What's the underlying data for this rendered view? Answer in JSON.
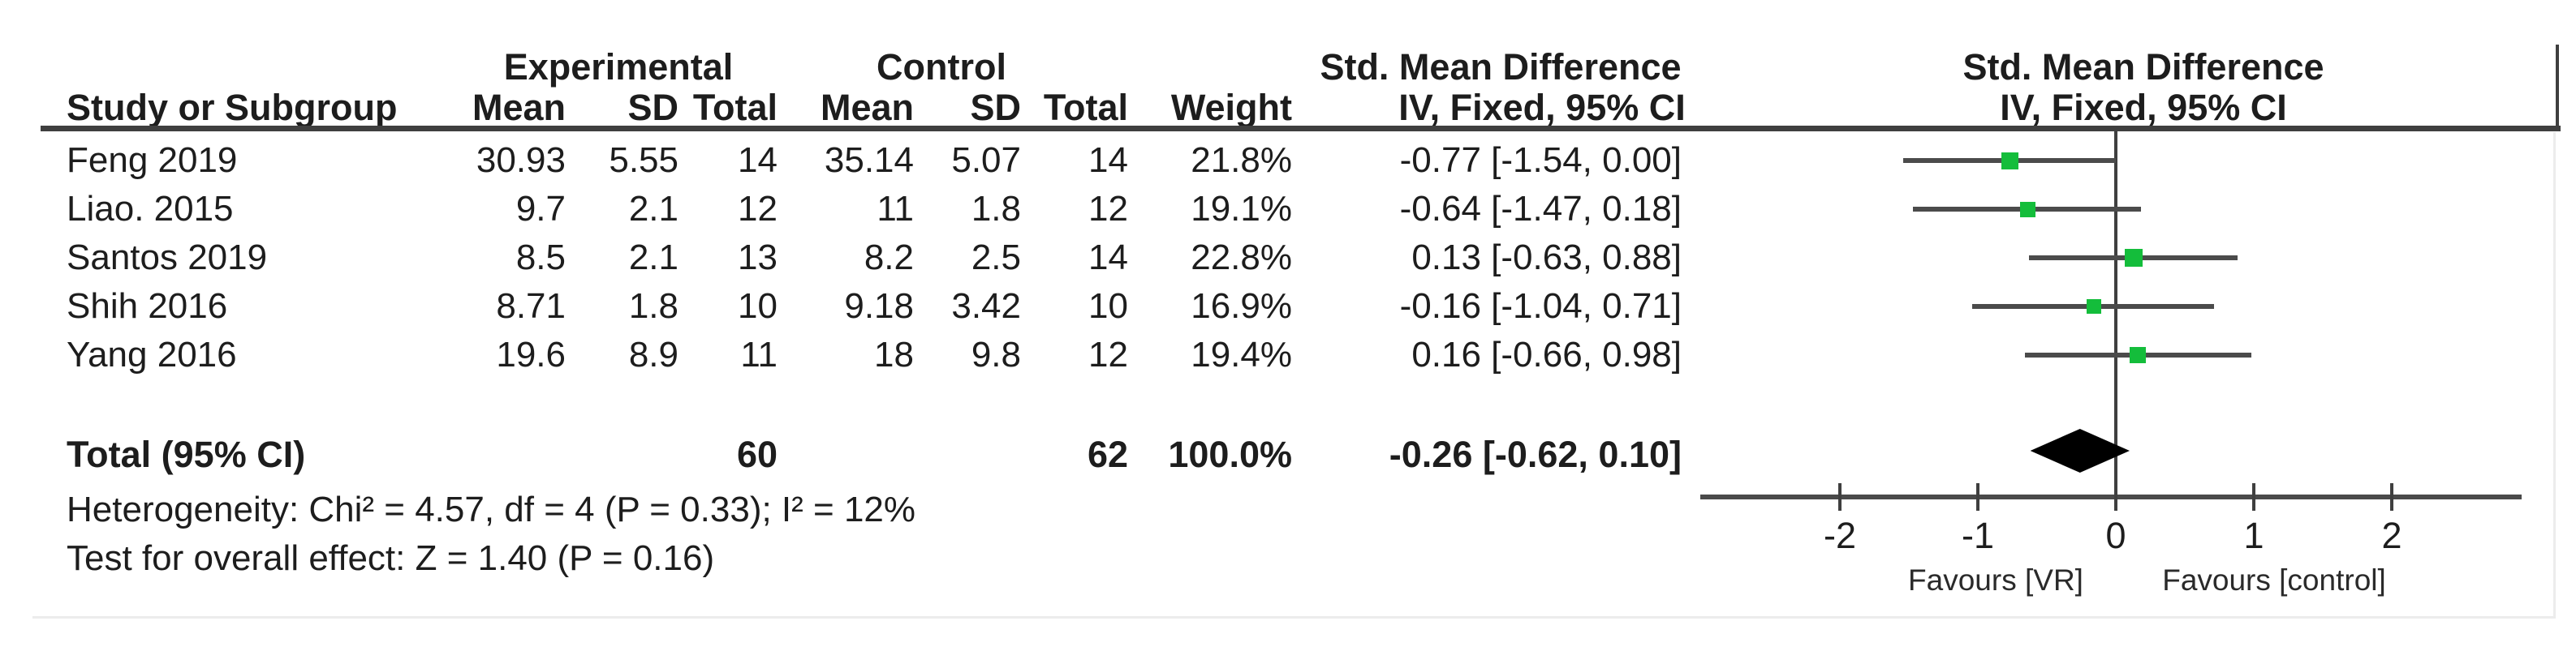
{
  "colors": {
    "square_green": "#14bd3b",
    "ci_line": "#4b4b4b",
    "rule": "#3f3f3f",
    "text": "#1d1d1d",
    "diamond": "#000000"
  },
  "header": {
    "group_experimental": "Experimental",
    "group_control": "Control",
    "smd_left": "Std. Mean Difference",
    "smd_right": "Std. Mean Difference",
    "study": "Study or Subgroup",
    "exp_mean": "Mean",
    "exp_sd": "SD",
    "exp_total": "Total",
    "ctrl_mean": "Mean",
    "ctrl_sd": "SD",
    "ctrl_total": "Total",
    "weight": "Weight",
    "ci_left": "IV, Fixed, 95% CI",
    "ci_right": "IV, Fixed, 95% CI"
  },
  "rows": [
    {
      "study": "Feng 2019",
      "exp_mean": "30.93",
      "exp_sd": "5.55",
      "exp_total": "14",
      "ctrl_mean": "35.14",
      "ctrl_sd": "5.07",
      "ctrl_total": "14",
      "weight": "21.8%",
      "ci_text": "-0.77 [-1.54, 0.00]"
    },
    {
      "study": "Liao. 2015",
      "exp_mean": "9.7",
      "exp_sd": "2.1",
      "exp_total": "12",
      "ctrl_mean": "11",
      "ctrl_sd": "1.8",
      "ctrl_total": "12",
      "weight": "19.1%",
      "ci_text": "-0.64 [-1.47, 0.18]"
    },
    {
      "study": "Santos 2019",
      "exp_mean": "8.5",
      "exp_sd": "2.1",
      "exp_total": "13",
      "ctrl_mean": "8.2",
      "ctrl_sd": "2.5",
      "ctrl_total": "14",
      "weight": "22.8%",
      "ci_text": "0.13 [-0.63, 0.88]"
    },
    {
      "study": "Shih 2016",
      "exp_mean": "8.71",
      "exp_sd": "1.8",
      "exp_total": "10",
      "ctrl_mean": "9.18",
      "ctrl_sd": "3.42",
      "ctrl_total": "10",
      "weight": "16.9%",
      "ci_text": "-0.16 [-1.04, 0.71]"
    },
    {
      "study": "Yang 2016",
      "exp_mean": "19.6",
      "exp_sd": "8.9",
      "exp_total": "11",
      "ctrl_mean": "18",
      "ctrl_sd": "9.8",
      "ctrl_total": "12",
      "weight": "19.4%",
      "ci_text": "0.16 [-0.66, 0.98]"
    }
  ],
  "total_row": {
    "label": "Total (95% CI)",
    "exp_total": "60",
    "ctrl_total": "62",
    "weight": "100.0%",
    "ci_text": "-0.26 [-0.62, 0.10]"
  },
  "footnotes": {
    "heterogeneity": "Heterogeneity: Chi² = 4.57, df = 4 (P = 0.33); I² = 12%",
    "overall_effect": "Test for overall effect: Z = 1.40 (P = 0.16)"
  },
  "chart_data": {
    "type": "scatter",
    "subtype": "forest-plot",
    "title": "",
    "effect_measure": "Std. Mean Difference (IV, Fixed, 95% CI)",
    "x_axis": {
      "ticks": [
        -2,
        -1,
        0,
        1,
        2
      ],
      "range_shown": [
        -3.0,
        2.95
      ],
      "zero_line": 0,
      "label_left": "Favours [VR]",
      "label_right": "Favours [control]"
    },
    "studies": [
      {
        "name": "Feng 2019",
        "est": -0.77,
        "lo": -1.54,
        "hi": 0.0,
        "weight_pct": 21.8
      },
      {
        "name": "Liao. 2015",
        "est": -0.64,
        "lo": -1.47,
        "hi": 0.18,
        "weight_pct": 19.1
      },
      {
        "name": "Santos 2019",
        "est": 0.13,
        "lo": -0.63,
        "hi": 0.88,
        "weight_pct": 22.8
      },
      {
        "name": "Shih 2016",
        "est": -0.16,
        "lo": -1.04,
        "hi": 0.71,
        "weight_pct": 16.9
      },
      {
        "name": "Yang 2016",
        "est": 0.16,
        "lo": -0.66,
        "hi": 0.98,
        "weight_pct": 19.4
      }
    ],
    "total": {
      "est": -0.26,
      "lo": -0.62,
      "hi": 0.1,
      "weight_pct": 100.0,
      "n_experimental": 60,
      "n_control": 62
    },
    "heterogeneity": {
      "chi2": 4.57,
      "df": 4,
      "p": 0.33,
      "i2_pct": 12
    },
    "overall_effect": {
      "z": 1.4,
      "p": 0.16
    }
  }
}
